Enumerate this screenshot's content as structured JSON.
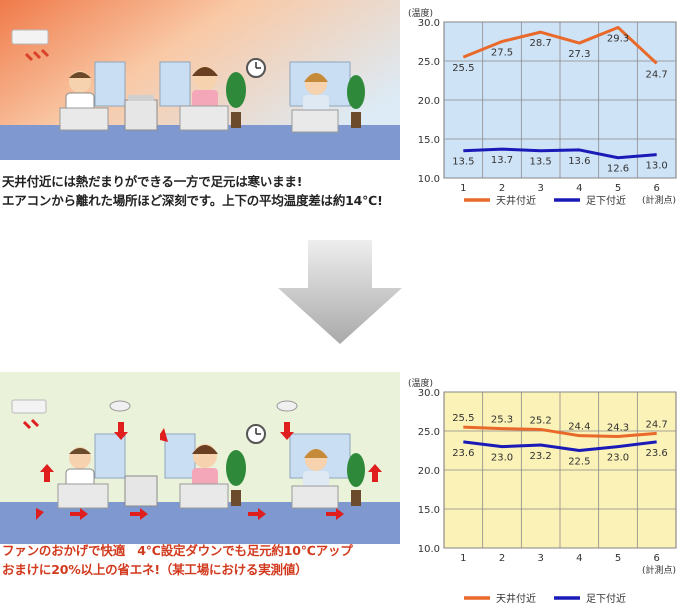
{
  "captions": {
    "top_line1": "天井付近には熱だまりができる一方で足元は寒いまま!",
    "top_line2": "エアコンから離れた場所ほど深刻です。上下の平均温度差は約14℃!",
    "bottom_line1": "ファンのおかげで快適　4℃設定ダウンでも足元約10℃アップ",
    "bottom_line2": "おまけに20%以上の省エネ!（某工場における実測値）"
  },
  "colors": {
    "ceiling": "#e8692a",
    "floor": "#1a1ab8",
    "top_bg": "#cfe3f7",
    "bottom_bg": "#fbf2b8",
    "fan_arrow": "#e01e1e"
  },
  "chart_data": [
    {
      "type": "line",
      "ylabel": "(温度)",
      "xlabel": "(計測点)",
      "x": [
        1,
        2,
        3,
        4,
        5,
        6
      ],
      "ylim": [
        10.0,
        30.0
      ],
      "yticks": [
        10.0,
        15.0,
        20.0,
        25.0,
        30.0
      ],
      "ytick_labels": [
        "10.0",
        "15.0",
        "20.0",
        "25.0",
        "30.0"
      ],
      "grid": true,
      "legend": "bottom",
      "series": [
        {
          "name": "天井付近",
          "values": [
            25.5,
            27.5,
            28.7,
            27.3,
            29.3,
            24.7
          ],
          "labels": [
            "25.5",
            "27.5",
            "28.7",
            "27.3",
            "29.3",
            "24.7"
          ]
        },
        {
          "name": "足下付近",
          "values": [
            13.5,
            13.7,
            13.5,
            13.6,
            12.6,
            13.0
          ],
          "labels": [
            "13.5",
            "13.7",
            "13.5",
            "13.6",
            "12.6",
            "13.0"
          ]
        }
      ]
    },
    {
      "type": "line",
      "ylabel": "(温度)",
      "xlabel": "(計測点)",
      "x": [
        1,
        2,
        3,
        4,
        5,
        6
      ],
      "ylim": [
        10.0,
        30.0
      ],
      "yticks": [
        10.0,
        15.0,
        20.0,
        25.0,
        30.0
      ],
      "ytick_labels": [
        "10.0",
        "15.0",
        "20.0",
        "25.0",
        "30.0"
      ],
      "grid": true,
      "legend": "bottom",
      "series": [
        {
          "name": "天井付近",
          "values": [
            25.5,
            25.3,
            25.2,
            24.4,
            24.3,
            24.7
          ],
          "labels": [
            "25.5",
            "25.3",
            "25.2",
            "24.4",
            "24.3",
            "24.7"
          ]
        },
        {
          "name": "足下付近",
          "values": [
            23.6,
            23.0,
            23.2,
            22.5,
            23.0,
            23.6
          ],
          "labels": [
            "23.6",
            "23.0",
            "23.2",
            "22.5",
            "23.0",
            "23.6"
          ]
        }
      ]
    }
  ]
}
